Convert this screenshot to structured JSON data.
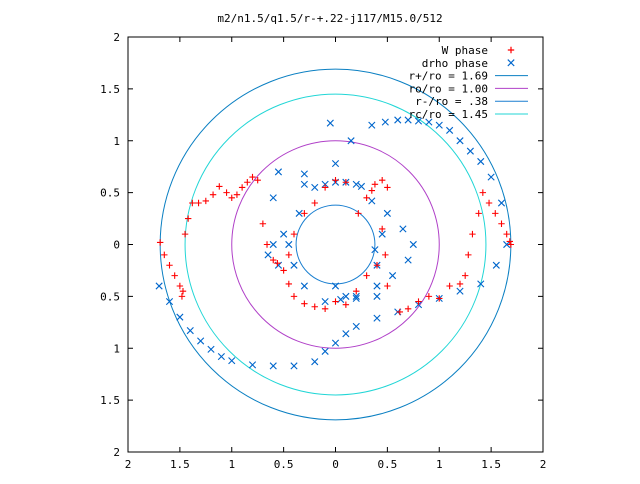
{
  "chart_data": {
    "type": "scatter",
    "title": "m2/n1.5/q1.5/r-+.22-j117/M15.0/512",
    "xlabel": "",
    "ylabel": "",
    "xlim": [
      -2,
      2
    ],
    "ylim": [
      -2,
      2
    ],
    "x_ticks": [
      {
        "value": -2,
        "label": "2"
      },
      {
        "value": -1.5,
        "label": "1.5"
      },
      {
        "value": -1,
        "label": "1"
      },
      {
        "value": -0.5,
        "label": "0.5"
      },
      {
        "value": 0,
        "label": "0"
      },
      {
        "value": 0.5,
        "label": "0.5"
      },
      {
        "value": 1,
        "label": "1"
      },
      {
        "value": 1.5,
        "label": "1.5"
      },
      {
        "value": 2,
        "label": "2"
      }
    ],
    "y_ticks": [
      {
        "value": 2,
        "label": "2"
      },
      {
        "value": 1.5,
        "label": "1.5"
      },
      {
        "value": 1,
        "label": "1"
      },
      {
        "value": 0.5,
        "label": "0.5"
      },
      {
        "value": 0,
        "label": "0"
      },
      {
        "value": -0.5,
        "label": "0.5"
      },
      {
        "value": -1,
        "label": "1"
      },
      {
        "value": -1.5,
        "label": "1.5"
      },
      {
        "value": -2,
        "label": "2"
      }
    ],
    "grid": false,
    "legend_position": "top-right",
    "legend": [
      {
        "label": "W phase",
        "marker": "+",
        "color": "#ff0000"
      },
      {
        "label": "drho phase",
        "marker": "x",
        "color": "#0066cc"
      },
      {
        "label": "r+/ro = 1.69",
        "marker": "line",
        "color": "#0a7fc2"
      },
      {
        "label": "ro/ro = 1.00",
        "marker": "line",
        "color": "#b040c8"
      },
      {
        "label": "r-/ro = .38",
        "marker": "line",
        "color": "#1a7fd0"
      },
      {
        "label": "rc/ro = 1.45",
        "marker": "line",
        "color": "#22d6d6"
      }
    ],
    "circles": [
      {
        "name": "r+/ro",
        "radius": 1.69,
        "color": "#0a7fc2"
      },
      {
        "name": "ro/ro",
        "radius": 1.0,
        "color": "#b040c8"
      },
      {
        "name": "r-/ro",
        "radius": 0.38,
        "color": "#1a7fd0"
      },
      {
        "name": "rc/ro",
        "radius": 1.45,
        "color": "#22d6d6"
      }
    ],
    "series": [
      {
        "name": "drho phase",
        "marker": "x",
        "color": "#0066cc",
        "x": [
          -1.7,
          -1.6,
          -1.5,
          -1.4,
          -1.3,
          -1.2,
          -1.1,
          -1.0,
          -0.8,
          -0.6,
          -0.4,
          -0.2,
          -0.1,
          0.0,
          0.1,
          0.2,
          0.4,
          0.6,
          0.8,
          1.0,
          1.2,
          1.4,
          1.55,
          1.65,
          -0.05,
          -0.5,
          -0.6,
          -0.55,
          -0.3,
          0.0,
          0.15,
          0.35,
          0.48,
          0.6,
          0.7,
          0.8,
          0.9,
          1.0,
          1.1,
          1.2,
          1.3,
          1.4,
          1.5,
          1.6,
          -0.6,
          -0.65,
          -0.55,
          -0.4,
          -0.3,
          -0.1,
          0.05,
          0.2,
          0.4,
          0.55,
          0.7,
          0.75,
          0.65,
          0.5,
          0.35,
          -0.2,
          -0.3,
          -0.35,
          -0.45,
          0.25,
          0.2,
          0.1,
          0.0,
          -0.1,
          0.0,
          0.1,
          0.2,
          0.4,
          0.45,
          0.38,
          0.4
        ],
        "y": [
          -0.4,
          -0.55,
          -0.7,
          -0.83,
          -0.93,
          -1.01,
          -1.08,
          -1.12,
          -1.16,
          -1.17,
          -1.17,
          -1.13,
          -1.03,
          -0.95,
          -0.86,
          -0.79,
          -0.71,
          -0.65,
          -0.58,
          -0.52,
          -0.45,
          -0.38,
          -0.2,
          0.0,
          1.17,
          0.1,
          0.45,
          0.7,
          0.68,
          0.78,
          1.0,
          1.15,
          1.18,
          1.2,
          1.2,
          1.19,
          1.18,
          1.15,
          1.1,
          1.0,
          0.9,
          0.8,
          0.65,
          0.4,
          0.0,
          -0.1,
          -0.2,
          -0.2,
          -0.4,
          -0.55,
          -0.53,
          -0.5,
          -0.4,
          -0.3,
          -0.15,
          0.0,
          0.15,
          0.3,
          0.42,
          0.55,
          0.58,
          0.3,
          0.0,
          0.56,
          0.58,
          0.6,
          0.6,
          0.58,
          -0.4,
          -0.5,
          -0.52,
          -0.5,
          0.1,
          -0.05,
          -0.2
        ]
      },
      {
        "name": "W phase",
        "marker": "+",
        "color": "#ff0000",
        "x": [
          -1.69,
          -1.65,
          -1.6,
          -1.55,
          -1.5,
          -1.48,
          -1.47,
          -1.45,
          -1.42,
          -1.38,
          -1.32,
          -1.25,
          -1.18,
          -1.12,
          -1.05,
          -1.0,
          -0.95,
          -0.9,
          -0.85,
          -0.8,
          -0.75,
          -0.7,
          -0.66,
          -0.6,
          -0.56,
          0.62,
          0.7,
          0.8,
          0.9,
          1.0,
          1.1,
          1.2,
          1.25,
          1.28,
          1.32,
          1.38,
          1.42,
          1.48,
          1.54,
          1.6,
          1.65,
          1.68,
          1.69,
          0.5,
          0.45,
          0.38,
          0.35,
          0.3,
          0.22,
          0.1,
          0.0,
          -0.1,
          -0.2,
          -0.3,
          -0.4,
          -0.45,
          -0.5,
          -0.45,
          -0.4,
          -0.3,
          -0.2,
          -0.1,
          0.0,
          0.1,
          0.2,
          0.3,
          0.4,
          0.45,
          0.48,
          0.5
        ],
        "y": [
          0.02,
          -0.1,
          -0.2,
          -0.3,
          -0.4,
          -0.5,
          -0.45,
          0.1,
          0.25,
          0.4,
          0.4,
          0.42,
          0.48,
          0.56,
          0.5,
          0.45,
          0.48,
          0.55,
          0.6,
          0.65,
          0.62,
          0.2,
          0.0,
          -0.15,
          -0.18,
          -0.65,
          -0.62,
          -0.55,
          -0.5,
          -0.52,
          -0.4,
          -0.38,
          -0.3,
          -0.1,
          0.1,
          0.3,
          0.5,
          0.4,
          0.3,
          0.2,
          0.1,
          0.03,
          0.0,
          0.55,
          0.62,
          0.58,
          0.52,
          0.45,
          0.3,
          0.6,
          0.62,
          0.55,
          0.4,
          0.3,
          0.1,
          -0.1,
          -0.25,
          -0.38,
          -0.5,
          -0.57,
          -0.6,
          -0.62,
          -0.55,
          -0.58,
          -0.45,
          -0.3,
          -0.2,
          0.15,
          -0.1,
          -0.4
        ]
      }
    ]
  }
}
